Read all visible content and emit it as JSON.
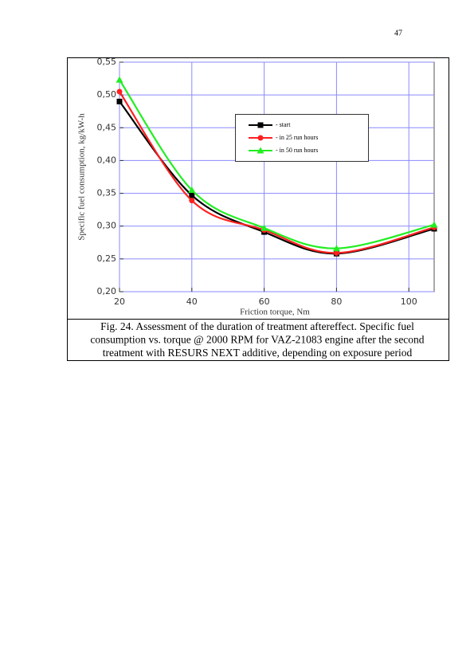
{
  "page_number": "47",
  "chart_data": {
    "type": "line",
    "x_label": "Friction torque, Nm",
    "y_label": "Specific fuel consumption, kg/kW-h",
    "x": [
      20,
      40,
      60,
      80,
      107
    ],
    "series": [
      {
        "name": "- start",
        "color": "#000000",
        "marker": "square",
        "values": [
          0.49,
          0.347,
          0.291,
          0.258,
          0.296
        ]
      },
      {
        "name": "- in 25 run hours",
        "color": "#ff2020",
        "marker": "circle",
        "values": [
          0.505,
          0.339,
          0.294,
          0.259,
          0.298
        ]
      },
      {
        "name": "- in 50 run hours",
        "color": "#22ee22",
        "marker": "triangle",
        "values": [
          0.523,
          0.355,
          0.297,
          0.266,
          0.302
        ]
      }
    ],
    "xlim": [
      20,
      107
    ],
    "xticks": [
      20,
      40,
      60,
      80,
      100
    ],
    "ylim": [
      0.2,
      0.55
    ],
    "yticks": [
      {
        "value": 0.2,
        "label": "0,20"
      },
      {
        "value": 0.25,
        "label": "0,25"
      },
      {
        "value": 0.3,
        "label": "0,30"
      },
      {
        "value": 0.35,
        "label": "0,35"
      },
      {
        "value": 0.4,
        "label": "0,40"
      },
      {
        "value": 0.45,
        "label": "0,45"
      },
      {
        "value": 0.5,
        "label": "0,50"
      },
      {
        "value": 0.55,
        "label": "0,55"
      }
    ],
    "grid": true,
    "smooth": true
  },
  "caption": [
    "Fig. 24. Assessment of the duration of treatment aftereffect. Specific fuel",
    "consumption vs. torque @ 2000 RPM for VAZ-21083 engine after the second",
    "treatment with RESURS NEXT additive, depending on exposure period"
  ]
}
